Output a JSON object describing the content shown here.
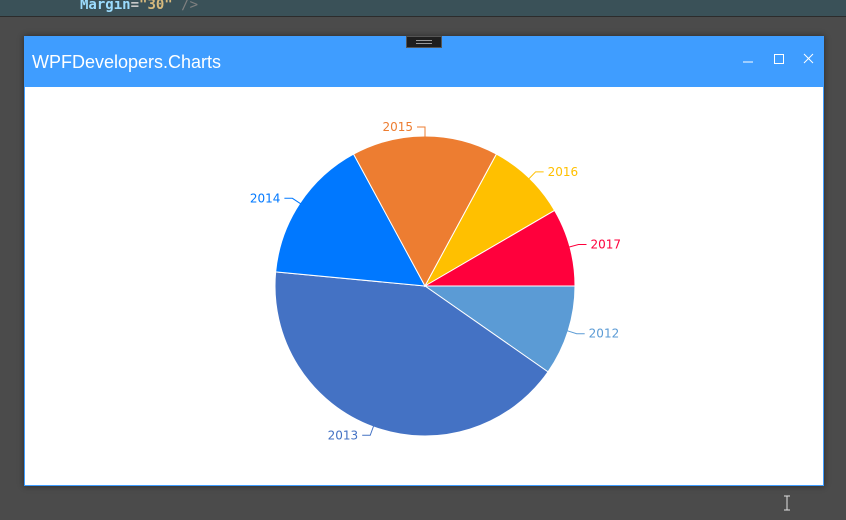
{
  "editor": {
    "code_attr": "Margin",
    "code_eq": "=",
    "code_value": "\"30\"",
    "code_close": " />"
  },
  "window": {
    "title": "WPFDevelopers.Charts",
    "accent_color": "#3f9dff",
    "controls": {
      "minimize_icon": "minimize-icon",
      "maximize_icon": "maximize-icon",
      "close_icon": "close-icon"
    }
  },
  "chart_data": {
    "type": "pie",
    "title": "",
    "categories": [
      "2012",
      "2013",
      "2014",
      "2015",
      "2016",
      "2017"
    ],
    "values": [
      9.7,
      41.8,
      15.6,
      15.8,
      8.7,
      8.4
    ],
    "colors": [
      "#5b9bd5",
      "#4472c4",
      "#0078ff",
      "#ed7d31",
      "#ffc000",
      "#ff003c"
    ],
    "legend": "none",
    "labels_outside": true
  }
}
